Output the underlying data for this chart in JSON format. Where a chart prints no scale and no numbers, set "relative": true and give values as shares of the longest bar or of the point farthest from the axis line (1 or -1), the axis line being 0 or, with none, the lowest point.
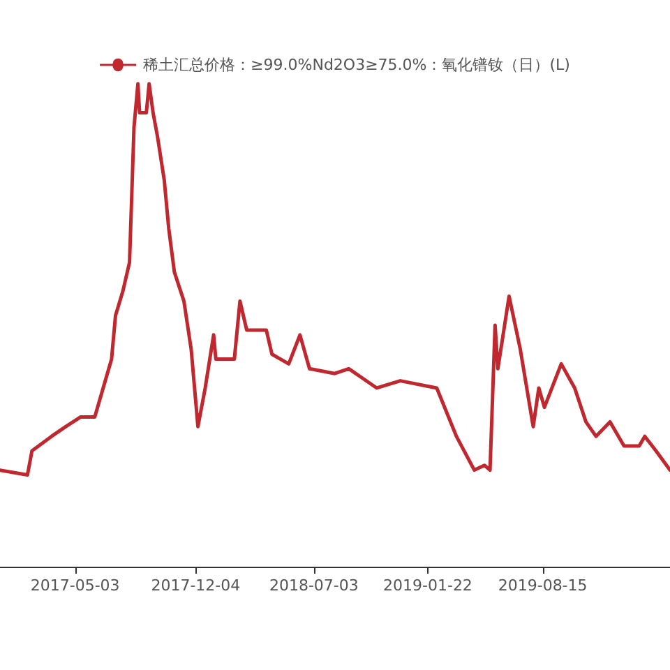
{
  "chart_data": {
    "type": "line",
    "relative": true,
    "legend": "top",
    "grid": false,
    "marker": "none",
    "line_style": "solid",
    "xlim": [
      "2016-12-20",
      "2020-03-29"
    ],
    "xticks": [
      "2017-05-03",
      "2017-12-04",
      "2018-07-03",
      "2019-01-22",
      "2019-08-15"
    ],
    "series": [
      {
        "name": "稀土汇总价格：≥99.0%Nd2O3≥75.0%：氧化镨钕（日）(L)",
        "color": "#c0282f",
        "x": [
          "2016-12-20",
          "2017-02-07",
          "2017-02-15",
          "2017-03-22",
          "2017-04-16",
          "2017-05-13",
          "2017-06-07",
          "2017-07-07",
          "2017-07-14",
          "2017-07-27",
          "2017-08-08",
          "2017-08-16",
          "2017-08-23",
          "2017-08-26",
          "2017-09-07",
          "2017-09-12",
          "2017-09-19",
          "2017-09-27",
          "2017-10-09",
          "2017-10-17",
          "2017-10-27",
          "2017-11-13",
          "2017-11-26",
          "2017-12-08",
          "2017-12-21",
          "2018-01-05",
          "2018-01-09",
          "2018-02-11",
          "2018-02-21",
          "2018-03-05",
          "2018-04-09",
          "2018-04-19",
          "2018-05-19",
          "2018-06-08",
          "2018-06-25",
          "2018-08-09",
          "2018-09-03",
          "2018-10-23",
          "2018-12-04",
          "2019-02-07",
          "2019-03-14",
          "2019-04-15",
          "2019-05-03",
          "2019-05-13",
          "2019-05-22",
          "2019-05-27",
          "2019-06-16",
          "2019-07-06",
          "2019-07-29",
          "2019-08-08",
          "2019-08-18",
          "2019-09-17",
          "2019-10-11",
          "2019-10-31",
          "2019-11-18",
          "2019-12-13",
          "2020-01-07",
          "2020-02-03",
          "2020-02-13",
          "2020-03-04",
          "2020-03-29"
        ],
        "values": [
          0.2,
          0.19,
          0.24,
          0.27,
          0.29,
          0.31,
          0.31,
          0.43,
          0.52,
          0.57,
          0.63,
          0.91,
          1.0,
          0.94,
          0.94,
          1.0,
          0.94,
          0.89,
          0.8,
          0.7,
          0.61,
          0.55,
          0.45,
          0.29,
          0.37,
          0.48,
          0.43,
          0.43,
          0.55,
          0.49,
          0.49,
          0.44,
          0.42,
          0.48,
          0.41,
          0.4,
          0.41,
          0.37,
          0.385,
          0.37,
          0.27,
          0.2,
          0.21,
          0.2,
          0.5,
          0.41,
          0.56,
          0.45,
          0.29,
          0.37,
          0.33,
          0.42,
          0.37,
          0.3,
          0.27,
          0.3,
          0.25,
          0.25,
          0.27,
          0.24,
          0.2
        ]
      }
    ]
  }
}
